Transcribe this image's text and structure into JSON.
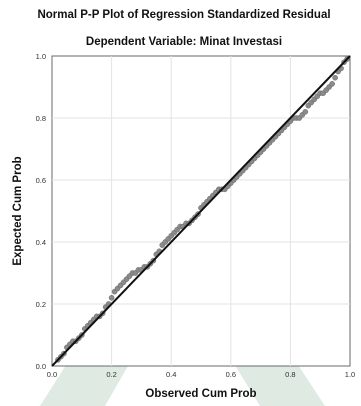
{
  "chart_data": {
    "type": "scatter",
    "title": "Normal P-P Plot of Regression Standardized Residual",
    "subtitle": "Dependent Variable: Minat Investasi",
    "xlabel": "Observed Cum Prob",
    "ylabel": "Expected Cum Prob",
    "xlim": [
      0.0,
      1.0
    ],
    "ylim": [
      0.0,
      1.0
    ],
    "x_ticks": [
      "0.0",
      "0.2",
      "0.4",
      "0.6",
      "0.8",
      "1.0"
    ],
    "y_ticks": [
      "0.0",
      "0.2",
      "0.4",
      "0.6",
      "0.8",
      "1.0"
    ],
    "grid": true,
    "reference_line": [
      [
        0.0,
        0.0
      ],
      [
        1.0,
        1.0
      ]
    ],
    "series": [
      {
        "points": [
          [
            0.02,
            0.02
          ],
          [
            0.03,
            0.03
          ],
          [
            0.04,
            0.04
          ],
          [
            0.05,
            0.06
          ],
          [
            0.06,
            0.07
          ],
          [
            0.07,
            0.08
          ],
          [
            0.08,
            0.08
          ],
          [
            0.09,
            0.09
          ],
          [
            0.1,
            0.1
          ],
          [
            0.11,
            0.12
          ],
          [
            0.12,
            0.13
          ],
          [
            0.13,
            0.14
          ],
          [
            0.14,
            0.15
          ],
          [
            0.15,
            0.16
          ],
          [
            0.16,
            0.16
          ],
          [
            0.17,
            0.17
          ],
          [
            0.18,
            0.19
          ],
          [
            0.19,
            0.2
          ],
          [
            0.2,
            0.22
          ],
          [
            0.21,
            0.24
          ],
          [
            0.22,
            0.25
          ],
          [
            0.23,
            0.26
          ],
          [
            0.24,
            0.27
          ],
          [
            0.25,
            0.28
          ],
          [
            0.26,
            0.29
          ],
          [
            0.27,
            0.3
          ],
          [
            0.28,
            0.3
          ],
          [
            0.29,
            0.31
          ],
          [
            0.3,
            0.31
          ],
          [
            0.31,
            0.32
          ],
          [
            0.32,
            0.32
          ],
          [
            0.33,
            0.33
          ],
          [
            0.34,
            0.34
          ],
          [
            0.35,
            0.36
          ],
          [
            0.36,
            0.37
          ],
          [
            0.37,
            0.39
          ],
          [
            0.38,
            0.4
          ],
          [
            0.39,
            0.41
          ],
          [
            0.4,
            0.42
          ],
          [
            0.41,
            0.43
          ],
          [
            0.42,
            0.44
          ],
          [
            0.43,
            0.45
          ],
          [
            0.44,
            0.45
          ],
          [
            0.45,
            0.46
          ],
          [
            0.46,
            0.46
          ],
          [
            0.47,
            0.47
          ],
          [
            0.48,
            0.48
          ],
          [
            0.49,
            0.49
          ],
          [
            0.5,
            0.51
          ],
          [
            0.51,
            0.52
          ],
          [
            0.52,
            0.53
          ],
          [
            0.53,
            0.54
          ],
          [
            0.54,
            0.55
          ],
          [
            0.55,
            0.56
          ],
          [
            0.56,
            0.57
          ],
          [
            0.57,
            0.57
          ],
          [
            0.58,
            0.57
          ],
          [
            0.59,
            0.58
          ],
          [
            0.6,
            0.59
          ],
          [
            0.61,
            0.6
          ],
          [
            0.62,
            0.61
          ],
          [
            0.63,
            0.62
          ],
          [
            0.64,
            0.63
          ],
          [
            0.65,
            0.64
          ],
          [
            0.66,
            0.65
          ],
          [
            0.67,
            0.66
          ],
          [
            0.68,
            0.67
          ],
          [
            0.69,
            0.68
          ],
          [
            0.7,
            0.69
          ],
          [
            0.71,
            0.7
          ],
          [
            0.72,
            0.71
          ],
          [
            0.73,
            0.72
          ],
          [
            0.74,
            0.73
          ],
          [
            0.75,
            0.74
          ],
          [
            0.76,
            0.75
          ],
          [
            0.77,
            0.76
          ],
          [
            0.78,
            0.77
          ],
          [
            0.79,
            0.78
          ],
          [
            0.8,
            0.79
          ],
          [
            0.81,
            0.8
          ],
          [
            0.82,
            0.8
          ],
          [
            0.83,
            0.8
          ],
          [
            0.84,
            0.81
          ],
          [
            0.85,
            0.82
          ],
          [
            0.86,
            0.84
          ],
          [
            0.87,
            0.85
          ],
          [
            0.88,
            0.86
          ],
          [
            0.89,
            0.87
          ],
          [
            0.9,
            0.88
          ],
          [
            0.91,
            0.88
          ],
          [
            0.92,
            0.89
          ],
          [
            0.93,
            0.9
          ],
          [
            0.94,
            0.91
          ],
          [
            0.95,
            0.93
          ],
          [
            0.96,
            0.95
          ],
          [
            0.97,
            0.96
          ],
          [
            0.98,
            0.98
          ],
          [
            0.99,
            0.99
          ]
        ]
      }
    ],
    "colors": {
      "points": "#8a8a8a",
      "points_stroke": "#5f5f5f",
      "reference_line": "#111111",
      "grid": "#e3e3e3",
      "frame": "#6a6a6a",
      "watermark": "#2f7a4c"
    }
  }
}
